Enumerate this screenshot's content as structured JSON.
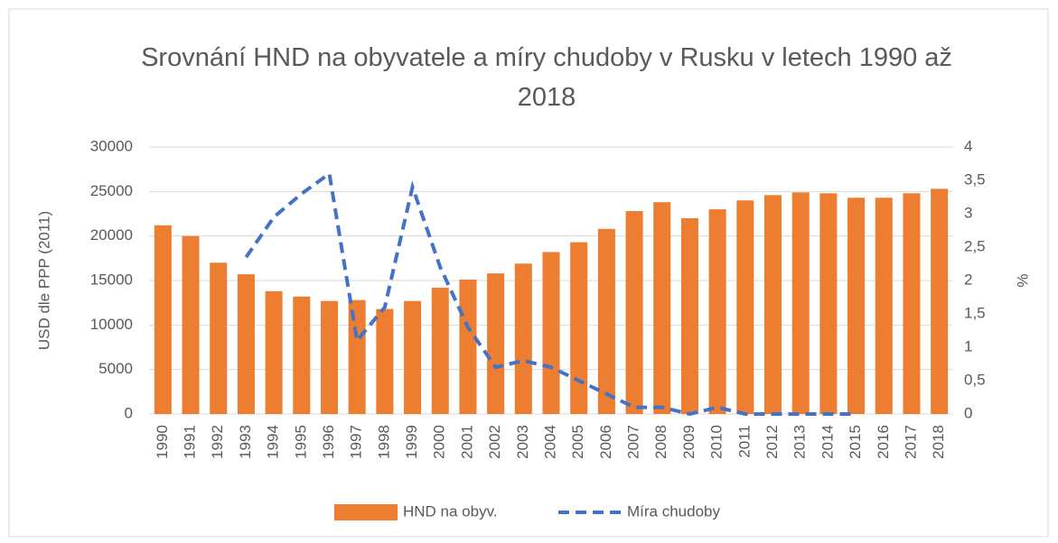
{
  "chart_data": {
    "type": "bar_line",
    "title": "Srovnání HND na obyvatele a míry chudoby v Rusku v letech 1990 až 2018",
    "ylabel": "USD dle PPP (2011)",
    "y2label": "%",
    "categories": [
      "1990",
      "1991",
      "1992",
      "1993",
      "1994",
      "1995",
      "1996",
      "1997",
      "1998",
      "1999",
      "2000",
      "2001",
      "2002",
      "2003",
      "2004",
      "2005",
      "2006",
      "2007",
      "2008",
      "2009",
      "2010",
      "2011",
      "2012",
      "2013",
      "2014",
      "2015",
      "2016",
      "2017",
      "2018"
    ],
    "series": [
      {
        "name": "HND na obyv.",
        "type": "bar",
        "color": "#ed7d31",
        "axis": "y",
        "values": [
          21200,
          20000,
          17000,
          15700,
          13800,
          13200,
          12700,
          12800,
          11800,
          12700,
          14200,
          15100,
          15800,
          16900,
          18200,
          19300,
          20800,
          22800,
          23800,
          22000,
          23000,
          24000,
          24600,
          24900,
          24800,
          24300,
          24300,
          24800,
          25300
        ]
      },
      {
        "name": "Míra chudoby",
        "type": "line",
        "color": "#4472c4",
        "axis": "y2",
        "dashed": true,
        "values": [
          null,
          null,
          null,
          2.35,
          2.95,
          3.3,
          3.6,
          1.1,
          1.6,
          3.4,
          2.2,
          1.3,
          0.7,
          0.8,
          0.7,
          0.5,
          0.3,
          0.1,
          0.1,
          0,
          0.1,
          0,
          0,
          0,
          0,
          0,
          null,
          null,
          null
        ]
      }
    ],
    "ylim": [
      0,
      30000
    ],
    "yticks": [
      0,
      5000,
      10000,
      15000,
      20000,
      25000,
      30000
    ],
    "y2lim": [
      0,
      4
    ],
    "y2ticks": [
      0,
      {
        "value": 0.5,
        "label": "0,5"
      },
      1,
      {
        "value": 1.5,
        "label": "1,5"
      },
      2,
      {
        "value": 2.5,
        "label": "2,5"
      },
      3,
      {
        "value": 3.5,
        "label": "3,5"
      },
      4
    ],
    "grid": true,
    "legend": "bottom"
  }
}
